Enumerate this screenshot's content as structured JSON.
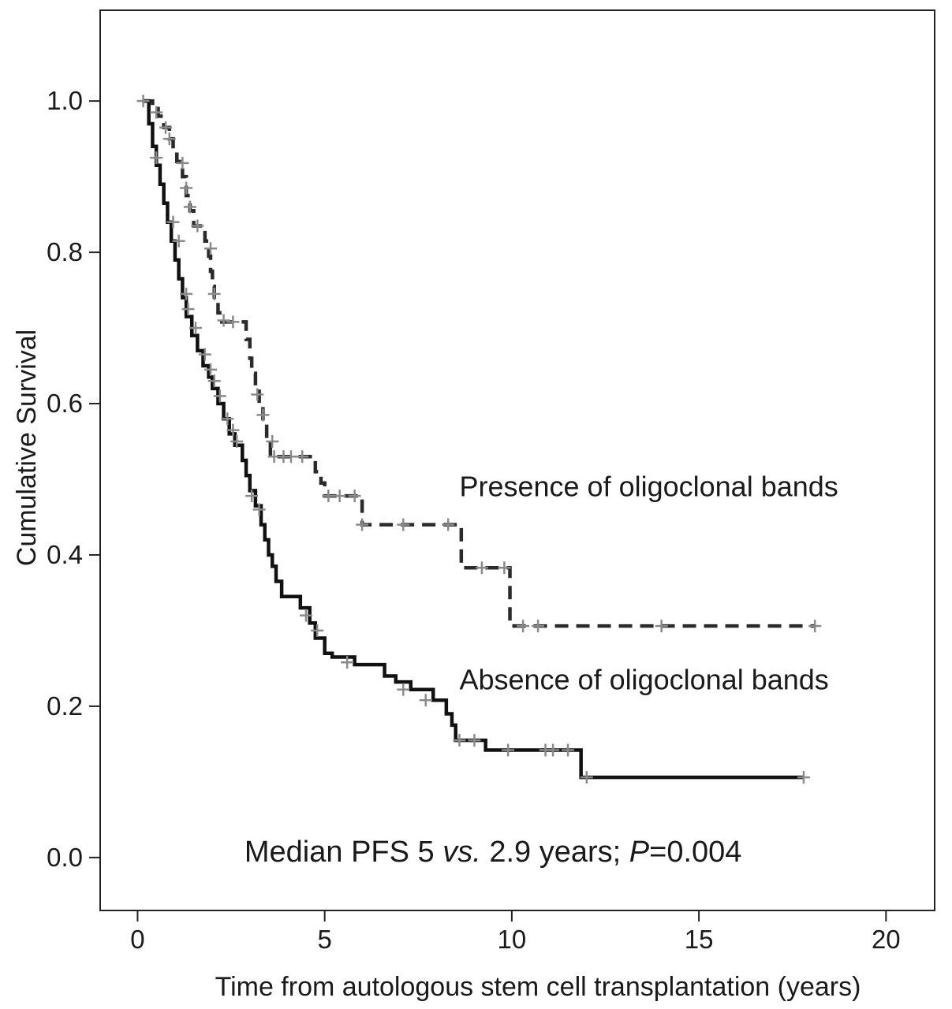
{
  "chart_data": {
    "type": "line",
    "subtype": "kaplan-meier-step",
    "title": "",
    "xlabel": "Time from autologous stem cell transplantation (years)",
    "ylabel": "Cumulative Survival",
    "xlim": [
      -1,
      21.3
    ],
    "ylim": [
      -0.07,
      1.12
    ],
    "xticks": [
      0,
      5,
      10,
      15,
      20
    ],
    "xtick_labels": [
      "0",
      "5",
      "10",
      "15",
      "20"
    ],
    "yticks": [
      0.0,
      0.2,
      0.4,
      0.6,
      0.8,
      1.0
    ],
    "ytick_labels": [
      "0.0",
      "0.2",
      "0.4",
      "0.6",
      "0.8",
      "1.0"
    ],
    "series": [
      {
        "name": "Presence of oligoclonal bands",
        "style": "dashed",
        "color": "#2a2a2a",
        "steps": [
          [
            0.15,
            1.0
          ],
          [
            0.4,
            0.99
          ],
          [
            0.55,
            0.98
          ],
          [
            0.7,
            0.965
          ],
          [
            0.85,
            0.95
          ],
          [
            0.95,
            0.935
          ],
          [
            1.05,
            0.92
          ],
          [
            1.2,
            0.9
          ],
          [
            1.3,
            0.875
          ],
          [
            1.4,
            0.855
          ],
          [
            1.5,
            0.835
          ],
          [
            1.8,
            0.815
          ],
          [
            1.9,
            0.795
          ],
          [
            1.95,
            0.775
          ],
          [
            2.0,
            0.755
          ],
          [
            2.05,
            0.735
          ],
          [
            2.15,
            0.72
          ],
          [
            2.25,
            0.708
          ],
          [
            2.9,
            0.685
          ],
          [
            3.0,
            0.66
          ],
          [
            3.05,
            0.64
          ],
          [
            3.15,
            0.62
          ],
          [
            3.25,
            0.6
          ],
          [
            3.35,
            0.575
          ],
          [
            3.45,
            0.55
          ],
          [
            3.55,
            0.53
          ],
          [
            4.75,
            0.51
          ],
          [
            4.9,
            0.495
          ],
          [
            5.0,
            0.478
          ],
          [
            6.0,
            0.44
          ],
          [
            8.65,
            0.383
          ],
          [
            9.95,
            0.306
          ]
        ],
        "end_x": 18.1,
        "censored": [
          [
            0.15,
            1.0
          ],
          [
            0.5,
            0.985
          ],
          [
            0.75,
            0.965
          ],
          [
            0.85,
            0.95
          ],
          [
            1.2,
            0.918
          ],
          [
            1.3,
            0.885
          ],
          [
            1.4,
            0.86
          ],
          [
            1.6,
            0.835
          ],
          [
            1.95,
            0.805
          ],
          [
            2.05,
            0.745
          ],
          [
            2.3,
            0.71
          ],
          [
            2.55,
            0.708
          ],
          [
            3.2,
            0.612
          ],
          [
            3.35,
            0.585
          ],
          [
            3.6,
            0.55
          ],
          [
            3.65,
            0.53
          ],
          [
            3.9,
            0.53
          ],
          [
            4.1,
            0.53
          ],
          [
            4.4,
            0.53
          ],
          [
            5.1,
            0.478
          ],
          [
            5.4,
            0.478
          ],
          [
            5.8,
            0.478
          ],
          [
            6.0,
            0.44
          ],
          [
            7.1,
            0.44
          ],
          [
            8.3,
            0.44
          ],
          [
            9.2,
            0.383
          ],
          [
            9.8,
            0.383
          ],
          [
            10.3,
            0.306
          ],
          [
            10.7,
            0.306
          ],
          [
            14.0,
            0.306
          ],
          [
            18.1,
            0.306
          ]
        ]
      },
      {
        "name": "Absence of oligoclonal bands",
        "style": "solid",
        "color": "#111111",
        "steps": [
          [
            0.15,
            1.0
          ],
          [
            0.3,
            0.97
          ],
          [
            0.4,
            0.94
          ],
          [
            0.5,
            0.915
          ],
          [
            0.6,
            0.89
          ],
          [
            0.7,
            0.865
          ],
          [
            0.8,
            0.84
          ],
          [
            0.9,
            0.815
          ],
          [
            1.0,
            0.79
          ],
          [
            1.1,
            0.765
          ],
          [
            1.2,
            0.74
          ],
          [
            1.3,
            0.715
          ],
          [
            1.45,
            0.69
          ],
          [
            1.6,
            0.67
          ],
          [
            1.75,
            0.65
          ],
          [
            1.9,
            0.635
          ],
          [
            2.0,
            0.62
          ],
          [
            2.15,
            0.6
          ],
          [
            2.3,
            0.58
          ],
          [
            2.45,
            0.56
          ],
          [
            2.6,
            0.545
          ],
          [
            2.8,
            0.525
          ],
          [
            2.9,
            0.505
          ],
          [
            3.0,
            0.485
          ],
          [
            3.15,
            0.465
          ],
          [
            3.3,
            0.44
          ],
          [
            3.4,
            0.42
          ],
          [
            3.5,
            0.4
          ],
          [
            3.6,
            0.385
          ],
          [
            3.7,
            0.365
          ],
          [
            3.85,
            0.345
          ],
          [
            4.35,
            0.33
          ],
          [
            4.6,
            0.31
          ],
          [
            4.75,
            0.29
          ],
          [
            5.0,
            0.27
          ],
          [
            5.2,
            0.265
          ],
          [
            5.8,
            0.255
          ],
          [
            6.6,
            0.24
          ],
          [
            6.9,
            0.232
          ],
          [
            7.3,
            0.222
          ],
          [
            7.9,
            0.208
          ],
          [
            8.25,
            0.19
          ],
          [
            8.4,
            0.175
          ],
          [
            8.5,
            0.155
          ],
          [
            9.3,
            0.142
          ],
          [
            11.85,
            0.106
          ]
        ],
        "end_x": 17.8,
        "censored": [
          [
            0.5,
            0.925
          ],
          [
            0.95,
            0.84
          ],
          [
            1.1,
            0.815
          ],
          [
            1.3,
            0.745
          ],
          [
            1.35,
            0.725
          ],
          [
            1.55,
            0.7
          ],
          [
            1.8,
            0.665
          ],
          [
            1.95,
            0.645
          ],
          [
            2.05,
            0.63
          ],
          [
            2.2,
            0.61
          ],
          [
            2.4,
            0.58
          ],
          [
            2.55,
            0.565
          ],
          [
            2.65,
            0.55
          ],
          [
            3.05,
            0.478
          ],
          [
            3.25,
            0.46
          ],
          [
            4.5,
            0.32
          ],
          [
            4.8,
            0.3
          ],
          [
            5.6,
            0.258
          ],
          [
            7.1,
            0.222
          ],
          [
            7.7,
            0.208
          ],
          [
            8.6,
            0.155
          ],
          [
            9.0,
            0.155
          ],
          [
            9.9,
            0.142
          ],
          [
            10.9,
            0.142
          ],
          [
            11.1,
            0.142
          ],
          [
            11.5,
            0.142
          ],
          [
            12.0,
            0.106
          ],
          [
            17.8,
            0.106
          ]
        ]
      }
    ],
    "annotations": [
      {
        "text": "Presence of oligoclonal bands",
        "x": 8.6,
        "y": 0.49
      },
      {
        "text": "Absence of oligoclonal bands",
        "x": 8.6,
        "y": 0.235
      }
    ],
    "stats_text": {
      "part1": "Median PFS 5 ",
      "part2": "vs.",
      "part3": " 2.9 years; ",
      "part4": "P",
      "part5": "=0.004"
    },
    "stats_anchor": {
      "x": 9.5,
      "y": 0.0
    },
    "grid": false,
    "legend": "none"
  }
}
